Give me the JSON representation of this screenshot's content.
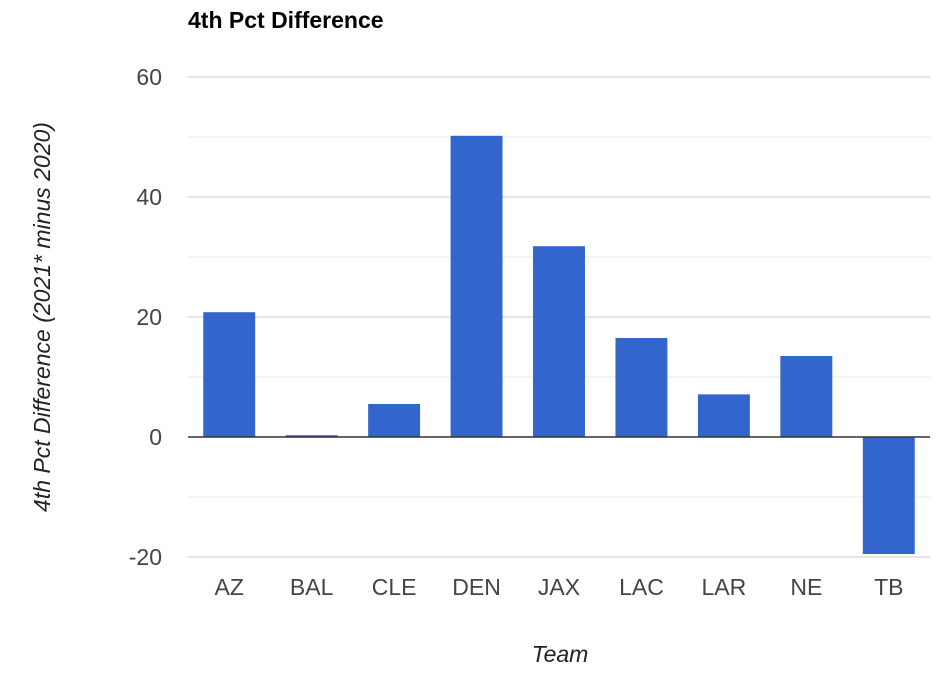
{
  "chart_data": {
    "type": "bar",
    "title": "4th Pct Difference",
    "xlabel": "Team",
    "ylabel": "4th Pct Difference (2021* minus 2020)",
    "categories": [
      "AZ",
      "BAL",
      "CLE",
      "DEN",
      "JAX",
      "LAC",
      "LAR",
      "NE",
      "TB"
    ],
    "series": [
      {
        "values": [
          20.8,
          0.3,
          5.5,
          50.2,
          31.8,
          16.5,
          7.1,
          13.5,
          -19.5
        ]
      }
    ],
    "ylim": [
      -20,
      60
    ],
    "yticks": [
      -20,
      0,
      20,
      40,
      60
    ],
    "yticks_labels": [
      "-20",
      "0",
      "20",
      "40",
      "60"
    ],
    "grid": true,
    "legend": "none",
    "colors": {
      "bar": "#3366cc",
      "gridline": "#cccccc",
      "minor_gridline": "#ebebeb",
      "baseline": "#333333"
    }
  }
}
